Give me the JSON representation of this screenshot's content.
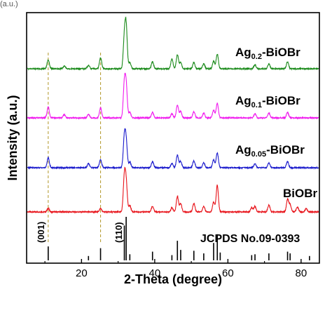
{
  "top_fragment": "(a.u.)",
  "bottom_fragment": "",
  "chart_data": {
    "type": "line",
    "xlabel": "2-Theta (degree)",
    "ylabel": "Intensity (a.u.)",
    "xlim": [
      5,
      85
    ],
    "xticks": [
      20,
      40,
      60,
      80
    ],
    "yticks_visible": false,
    "grid": false,
    "reference_lines_x": [
      10.9,
      25.2
    ],
    "reference": {
      "name": "JCPDS No.09-0393",
      "annotations": [
        {
          "label": "(001)",
          "x": 10.9
        },
        {
          "label": "(110)",
          "x": 32.2
        }
      ],
      "peaks": [
        {
          "x": 10.9,
          "h": 0.32
        },
        {
          "x": 21.9,
          "h": 0.1
        },
        {
          "x": 25.2,
          "h": 0.28
        },
        {
          "x": 31.7,
          "h": 0.8
        },
        {
          "x": 32.2,
          "h": 1.0
        },
        {
          "x": 33.2,
          "h": 0.14
        },
        {
          "x": 39.4,
          "h": 0.2
        },
        {
          "x": 44.7,
          "h": 0.12
        },
        {
          "x": 46.2,
          "h": 0.45
        },
        {
          "x": 47.1,
          "h": 0.24
        },
        {
          "x": 50.7,
          "h": 0.22
        },
        {
          "x": 53.4,
          "h": 0.16
        },
        {
          "x": 56.1,
          "h": 0.4
        },
        {
          "x": 57.1,
          "h": 0.6
        },
        {
          "x": 57.9,
          "h": 0.18
        },
        {
          "x": 66.5,
          "h": 0.12
        },
        {
          "x": 67.4,
          "h": 0.14
        },
        {
          "x": 71.2,
          "h": 0.16
        },
        {
          "x": 76.3,
          "h": 0.2
        },
        {
          "x": 77.0,
          "h": 0.16
        },
        {
          "x": 82.3,
          "h": 0.1
        }
      ]
    },
    "series": [
      {
        "name": "BiOBr",
        "label_main": "BiOBr",
        "label_sub": "",
        "label_suffix": "",
        "color": "#e8141b",
        "offset": 0,
        "peaks": [
          {
            "x": 10.9,
            "h": 5
          },
          {
            "x": 25.2,
            "h": 5
          },
          {
            "x": 31.7,
            "h": 48
          },
          {
            "x": 32.2,
            "h": 40
          },
          {
            "x": 33.2,
            "h": 9
          },
          {
            "x": 39.4,
            "h": 8
          },
          {
            "x": 44.7,
            "h": 6
          },
          {
            "x": 46.2,
            "h": 22
          },
          {
            "x": 47.1,
            "h": 12
          },
          {
            "x": 50.7,
            "h": 12
          },
          {
            "x": 53.4,
            "h": 8
          },
          {
            "x": 56.1,
            "h": 14
          },
          {
            "x": 57.1,
            "h": 38
          },
          {
            "x": 66.5,
            "h": 6
          },
          {
            "x": 67.4,
            "h": 8
          },
          {
            "x": 71.2,
            "h": 10
          },
          {
            "x": 76.3,
            "h": 18
          },
          {
            "x": 77.0,
            "h": 10
          },
          {
            "x": 79.0,
            "h": 7
          },
          {
            "x": 81.4,
            "h": 5
          }
        ]
      },
      {
        "name": "Ag0.05-BiOBr",
        "label_main": "Ag",
        "label_sub": "0.05",
        "label_suffix": "-BiOBr",
        "color": "#1a1acc",
        "offset": 1,
        "peaks": [
          {
            "x": 10.9,
            "h": 14
          },
          {
            "x": 21.9,
            "h": 6
          },
          {
            "x": 25.2,
            "h": 12
          },
          {
            "x": 31.7,
            "h": 42
          },
          {
            "x": 32.2,
            "h": 36
          },
          {
            "x": 33.2,
            "h": 8
          },
          {
            "x": 39.4,
            "h": 9
          },
          {
            "x": 44.7,
            "h": 6
          },
          {
            "x": 46.2,
            "h": 18
          },
          {
            "x": 47.1,
            "h": 9
          },
          {
            "x": 50.7,
            "h": 10
          },
          {
            "x": 53.4,
            "h": 7
          },
          {
            "x": 56.1,
            "h": 11
          },
          {
            "x": 57.1,
            "h": 21
          },
          {
            "x": 67.4,
            "h": 6
          },
          {
            "x": 71.2,
            "h": 7
          },
          {
            "x": 76.3,
            "h": 9
          }
        ]
      },
      {
        "name": "Ag0.1-BiOBr",
        "label_main": "Ag",
        "label_sub": "0.1",
        "label_suffix": "-BiOBr",
        "color": "#f01aee",
        "offset": 2,
        "peaks": [
          {
            "x": 10.9,
            "h": 16
          },
          {
            "x": 15.3,
            "h": 5
          },
          {
            "x": 21.9,
            "h": 5
          },
          {
            "x": 25.2,
            "h": 14
          },
          {
            "x": 31.7,
            "h": 46
          },
          {
            "x": 32.2,
            "h": 44
          },
          {
            "x": 33.2,
            "h": 8
          },
          {
            "x": 39.4,
            "h": 8
          },
          {
            "x": 44.7,
            "h": 6
          },
          {
            "x": 46.2,
            "h": 18
          },
          {
            "x": 47.1,
            "h": 9
          },
          {
            "x": 50.7,
            "h": 9
          },
          {
            "x": 53.4,
            "h": 7
          },
          {
            "x": 56.1,
            "h": 11
          },
          {
            "x": 57.1,
            "h": 21
          },
          {
            "x": 67.4,
            "h": 6
          },
          {
            "x": 71.2,
            "h": 7
          },
          {
            "x": 76.3,
            "h": 8
          }
        ]
      },
      {
        "name": "Ag0.2-BiOBr",
        "label_main": "Ag",
        "label_sub": "0.2",
        "label_suffix": "-BiOBr",
        "color": "#1a8a1a",
        "offset": 3,
        "peaks": [
          {
            "x": 10.9,
            "h": 13
          },
          {
            "x": 15.3,
            "h": 4
          },
          {
            "x": 21.9,
            "h": 5
          },
          {
            "x": 25.2,
            "h": 16
          },
          {
            "x": 31.7,
            "h": 42
          },
          {
            "x": 32.2,
            "h": 58
          },
          {
            "x": 33.2,
            "h": 9
          },
          {
            "x": 39.4,
            "h": 10
          },
          {
            "x": 44.7,
            "h": 14
          },
          {
            "x": 46.2,
            "h": 20
          },
          {
            "x": 47.1,
            "h": 9
          },
          {
            "x": 50.7,
            "h": 9
          },
          {
            "x": 53.4,
            "h": 7
          },
          {
            "x": 56.1,
            "h": 11
          },
          {
            "x": 57.1,
            "h": 21
          },
          {
            "x": 67.4,
            "h": 6
          },
          {
            "x": 71.2,
            "h": 7
          },
          {
            "x": 76.3,
            "h": 10
          }
        ]
      }
    ]
  }
}
